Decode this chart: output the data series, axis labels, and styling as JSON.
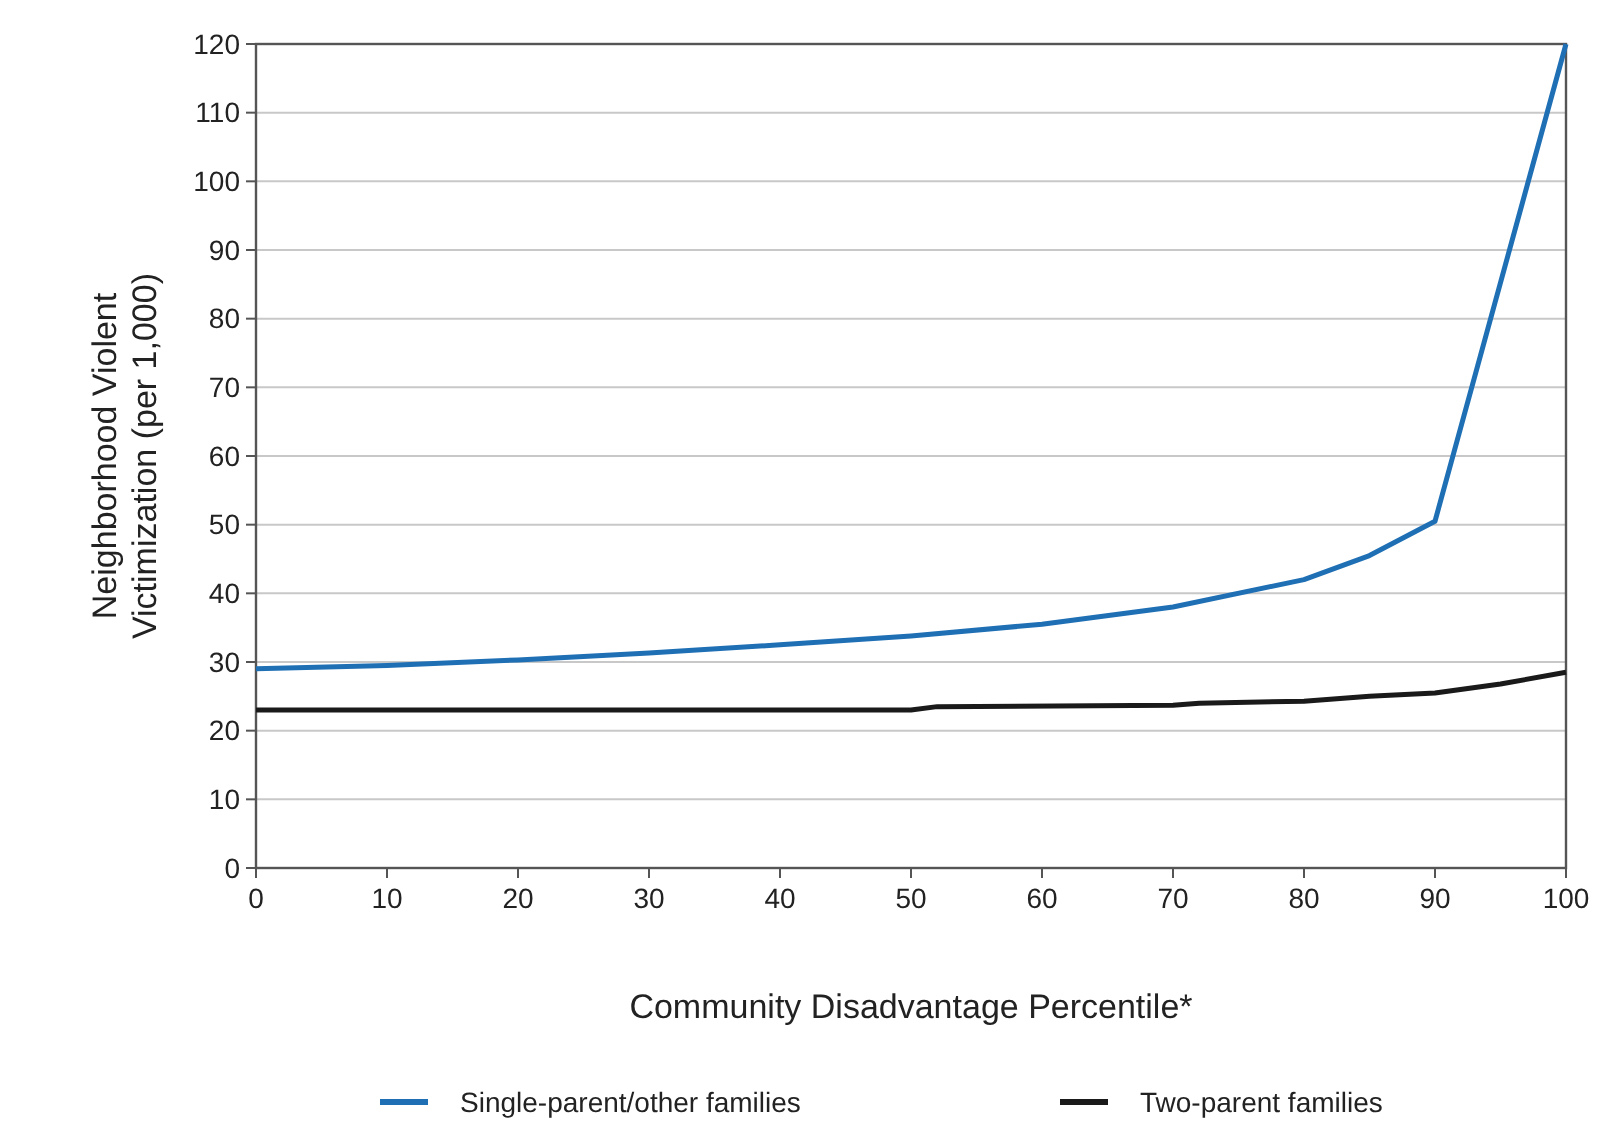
{
  "chart_data": {
    "type": "line",
    "xlabel": "Community Disadvantage Percentile*",
    "ylabel": "Neighborhood Violent\nVictimization (per 1,000)",
    "xlim": [
      0,
      100
    ],
    "xticks": [
      0,
      10,
      20,
      30,
      40,
      50,
      60,
      70,
      80,
      90,
      100
    ],
    "ylim": [
      0,
      120
    ],
    "yticks": [
      0,
      10,
      20,
      30,
      40,
      50,
      60,
      70,
      80,
      90,
      100,
      110,
      120
    ],
    "grid": "y",
    "legend": "bottom",
    "line_style": "solid",
    "x": [
      0,
      10,
      20,
      30,
      40,
      50,
      60,
      70,
      80,
      85,
      90,
      100
    ],
    "series": [
      {
        "name": "Single-parent/other families",
        "color": "#1f6fb5",
        "values": [
          29,
          29.5,
          30.3,
          31.3,
          32.5,
          33.8,
          35.5,
          38,
          42,
          45.5,
          50.5,
          120
        ]
      },
      {
        "name": "Two-parent families",
        "color": "#1a1a1a",
        "x": [
          0,
          50,
          52,
          70,
          72,
          80,
          85,
          90,
          95,
          100
        ],
        "values": [
          23,
          23,
          23.5,
          23.7,
          24,
          24.3,
          25,
          25.5,
          26.8,
          28.5
        ]
      }
    ]
  }
}
